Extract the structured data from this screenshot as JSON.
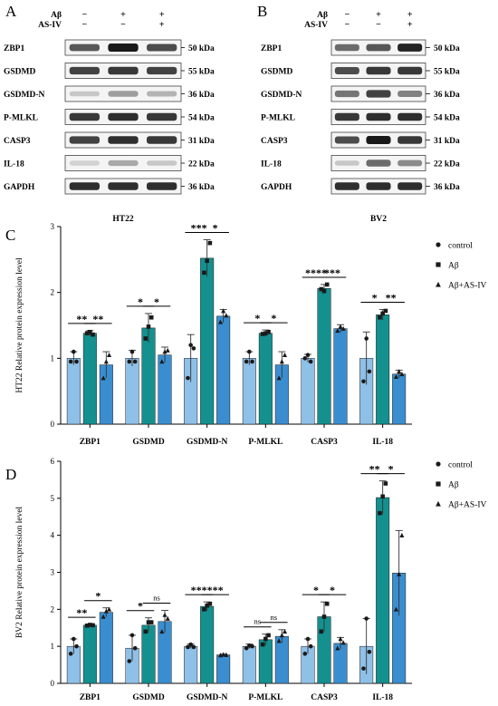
{
  "panels": {
    "A": "A",
    "B": "B",
    "C": "C",
    "D": "D"
  },
  "blots": [
    {
      "id": "A",
      "cell_line": "HT22",
      "treatments": [
        {
          "name": "Aβ",
          "signs": [
            "−",
            "+",
            "+"
          ]
        },
        {
          "name": "AS-IV",
          "signs": [
            "−",
            "−",
            "+"
          ]
        }
      ],
      "rows": [
        {
          "protein": "ZBP1",
          "kda": "50 kDa",
          "intensity": [
            0.7,
            1.0,
            0.75
          ]
        },
        {
          "protein": "GSDMD",
          "kda": "55 kDa",
          "intensity": [
            0.8,
            0.85,
            0.8
          ]
        },
        {
          "protein": "GSDMD-N",
          "kda": "36 kDa",
          "intensity": [
            0.15,
            0.35,
            0.25
          ]
        },
        {
          "protein": "P-MLKL",
          "kda": "54 kDa",
          "intensity": [
            0.85,
            0.9,
            0.85
          ]
        },
        {
          "protein": "CASP3",
          "kda": "31 kDa",
          "intensity": [
            0.8,
            0.9,
            0.85
          ]
        },
        {
          "protein": "IL-18",
          "kda": "22 kDa",
          "intensity": [
            0.1,
            0.3,
            0.15
          ]
        },
        {
          "protein": "GAPDH",
          "kda": "36 kDa",
          "intensity": [
            0.9,
            0.9,
            0.9
          ]
        }
      ]
    },
    {
      "id": "B",
      "cell_line": "BV2",
      "treatments": [
        {
          "name": "Aβ",
          "signs": [
            "−",
            "+",
            "+"
          ]
        },
        {
          "name": "AS-IV",
          "signs": [
            "−",
            "−",
            "+"
          ]
        }
      ],
      "rows": [
        {
          "protein": "ZBP1",
          "kda": "50 kDa",
          "intensity": [
            0.6,
            0.7,
            0.95
          ]
        },
        {
          "protein": "GSDMD",
          "kda": "55 kDa",
          "intensity": [
            0.75,
            0.85,
            0.85
          ]
        },
        {
          "protein": "GSDMD-N",
          "kda": "36 kDa",
          "intensity": [
            0.55,
            0.8,
            0.5
          ]
        },
        {
          "protein": "P-MLKL",
          "kda": "54 kDa",
          "intensity": [
            0.85,
            0.9,
            0.9
          ]
        },
        {
          "protein": "CASP3",
          "kda": "31 kDa",
          "intensity": [
            0.75,
            1.0,
            0.85
          ]
        },
        {
          "protein": "IL-18",
          "kda": "22 kDa",
          "intensity": [
            0.15,
            0.6,
            0.45
          ]
        },
        {
          "protein": "GAPDH",
          "kda": "36 kDa",
          "intensity": [
            0.9,
            0.9,
            0.9
          ]
        }
      ]
    }
  ],
  "chart_data": [
    {
      "type": "bar",
      "panel": "C",
      "ylabel": "HT22 Relative protein expression level",
      "ylim": [
        0,
        3
      ],
      "yticks": [
        0,
        1,
        2,
        3
      ],
      "categories": [
        "ZBP1",
        "GSDMD",
        "GSDMD-N",
        "P-MLKL",
        "CASP3",
        "IL-18"
      ],
      "legend_position": "right",
      "series": [
        {
          "name": "control",
          "color": "#8fc0e8",
          "marker": "circle",
          "values": [
            1.0,
            1.0,
            1.0,
            1.0,
            1.0,
            1.0
          ],
          "errors": [
            0.1,
            0.12,
            0.36,
            0.1,
            0.06,
            0.4
          ],
          "points": [
            [
              0.95,
              1.1,
              0.95
            ],
            [
              0.95,
              1.1,
              0.95
            ],
            [
              0.7,
              1.2,
              1.15
            ],
            [
              0.95,
              1.1,
              0.95
            ],
            [
              1.0,
              1.05,
              0.95
            ],
            [
              0.65,
              1.3,
              0.8
            ]
          ]
        },
        {
          "name": "Aβ",
          "color": "#14908f",
          "marker": "square",
          "values": [
            1.38,
            1.46,
            2.52,
            1.38,
            2.06,
            1.66
          ],
          "errors": [
            0.04,
            0.22,
            0.28,
            0.05,
            0.06,
            0.08
          ],
          "points": [
            [
              1.38,
              1.4,
              1.36
            ],
            [
              1.3,
              1.48,
              1.62
            ],
            [
              2.3,
              2.48,
              2.75
            ],
            [
              1.37,
              1.38,
              1.4
            ],
            [
              2.05,
              2.02,
              2.12
            ],
            [
              1.62,
              1.68,
              1.72
            ]
          ]
        },
        {
          "name": "Aβ+AS-IV",
          "color": "#3a8ed0",
          "marker": "triangle",
          "values": [
            0.9,
            1.05,
            1.64,
            0.9,
            1.45,
            0.76
          ],
          "errors": [
            0.2,
            0.12,
            0.1,
            0.2,
            0.06,
            0.06
          ],
          "points": [
            [
              0.7,
              0.95,
              1.05
            ],
            [
              0.95,
              1.1,
              1.12
            ],
            [
              1.55,
              1.72,
              1.65
            ],
            [
              0.7,
              0.95,
              1.05
            ],
            [
              1.42,
              1.48,
              1.45
            ],
            [
              0.72,
              0.8,
              0.76
            ]
          ]
        }
      ],
      "significance": [
        {
          "category": "ZBP1",
          "pair": [
            0,
            1
          ],
          "label": "**"
        },
        {
          "category": "ZBP1",
          "pair": [
            1,
            2
          ],
          "label": "**"
        },
        {
          "category": "GSDMD",
          "pair": [
            0,
            1
          ],
          "label": "*"
        },
        {
          "category": "GSDMD",
          "pair": [
            1,
            2
          ],
          "label": "*"
        },
        {
          "category": "GSDMD-N",
          "pair": [
            0,
            1
          ],
          "label": "***"
        },
        {
          "category": "GSDMD-N",
          "pair": [
            1,
            2
          ],
          "label": "*"
        },
        {
          "category": "P-MLKL",
          "pair": [
            0,
            1
          ],
          "label": "*"
        },
        {
          "category": "P-MLKL",
          "pair": [
            1,
            2
          ],
          "label": "*"
        },
        {
          "category": "CASP3",
          "pair": [
            0,
            1
          ],
          "label": "****"
        },
        {
          "category": "CASP3",
          "pair": [
            1,
            2
          ],
          "label": "***"
        },
        {
          "category": "IL-18",
          "pair": [
            0,
            1
          ],
          "label": "*"
        },
        {
          "category": "IL-18",
          "pair": [
            1,
            2
          ],
          "label": "**"
        }
      ]
    },
    {
      "type": "bar",
      "panel": "D",
      "ylabel": "BV2 Relative protein expression level",
      "ylim": [
        0,
        6
      ],
      "yticks": [
        0,
        1,
        2,
        3,
        4,
        5,
        6
      ],
      "categories": [
        "ZBP1",
        "GSDMD",
        "GSDMD-N",
        "P-MLKL",
        "CASP3",
        "IL-18"
      ],
      "legend_position": "right",
      "series": [
        {
          "name": "control",
          "color": "#8fc0e8",
          "marker": "circle",
          "values": [
            1.0,
            0.95,
            1.0,
            1.0,
            1.0,
            1.0
          ],
          "errors": [
            0.2,
            0.35,
            0.06,
            0.06,
            0.2,
            0.75
          ],
          "points": [
            [
              0.8,
              1.2,
              1.0
            ],
            [
              0.6,
              1.3,
              0.95
            ],
            [
              0.98,
              1.05,
              0.98
            ],
            [
              0.95,
              1.02,
              1.0
            ],
            [
              0.8,
              1.2,
              1.0
            ],
            [
              0.4,
              1.75,
              0.85
            ]
          ]
        },
        {
          "name": "Aβ",
          "color": "#14908f",
          "marker": "square",
          "values": [
            1.57,
            1.57,
            2.08,
            1.18,
            1.8,
            5.02
          ],
          "errors": [
            0.02,
            0.2,
            0.12,
            0.15,
            0.4,
            0.45
          ],
          "points": [
            [
              1.56,
              1.58,
              1.57
            ],
            [
              1.4,
              1.65,
              1.65
            ],
            [
              2.0,
              2.1,
              2.15
            ],
            [
              1.05,
              1.2,
              1.3
            ],
            [
              1.4,
              1.8,
              2.15
            ],
            [
              4.6,
              5.05,
              5.4
            ]
          ]
        },
        {
          "name": "Aβ+AS-IV",
          "color": "#3a8ed0",
          "marker": "triangle",
          "values": [
            1.92,
            1.67,
            0.77,
            1.27,
            1.08,
            2.98
          ],
          "errors": [
            0.12,
            0.3,
            0.02,
            0.18,
            0.16,
            1.15
          ],
          "points": [
            [
              1.8,
              1.95,
              2.0
            ],
            [
              1.4,
              1.85,
              1.75
            ],
            [
              0.76,
              0.78,
              0.77
            ],
            [
              1.15,
              1.3,
              1.4
            ],
            [
              0.95,
              1.2,
              1.1
            ],
            [
              2.0,
              2.95,
              4.0
            ]
          ]
        }
      ],
      "significance": [
        {
          "category": "ZBP1",
          "pair": [
            0,
            1
          ],
          "label": "**"
        },
        {
          "category": "ZBP1",
          "pair": [
            1,
            2
          ],
          "label": "*"
        },
        {
          "category": "GSDMD",
          "pair": [
            0,
            1
          ],
          "label": "*"
        },
        {
          "category": "GSDMD",
          "pair": [
            1,
            2
          ],
          "label": "ns"
        },
        {
          "category": "GSDMD-N",
          "pair": [
            0,
            1
          ],
          "label": "***"
        },
        {
          "category": "GSDMD-N",
          "pair": [
            1,
            2
          ],
          "label": "***"
        },
        {
          "category": "P-MLKL",
          "pair": [
            0,
            1
          ],
          "label": "ns"
        },
        {
          "category": "P-MLKL",
          "pair": [
            1,
            2
          ],
          "label": "ns"
        },
        {
          "category": "CASP3",
          "pair": [
            0,
            1
          ],
          "label": "*"
        },
        {
          "category": "CASP3",
          "pair": [
            1,
            2
          ],
          "label": "*"
        },
        {
          "category": "IL-18",
          "pair": [
            0,
            1
          ],
          "label": "**"
        },
        {
          "category": "IL-18",
          "pair": [
            1,
            2
          ],
          "label": "*"
        }
      ]
    }
  ]
}
